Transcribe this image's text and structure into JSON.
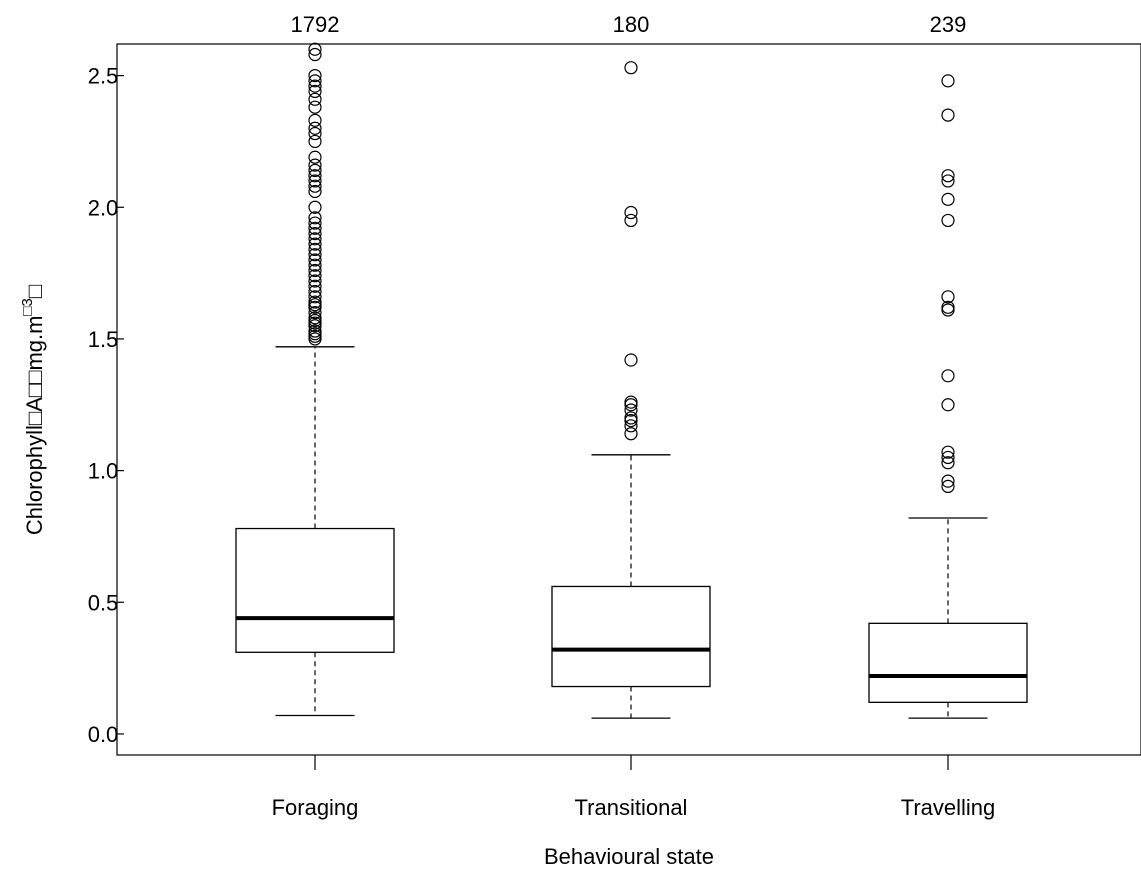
{
  "chart_data": {
    "type": "boxplot",
    "title": "",
    "xlabel": "Behavioural state",
    "ylabel": "Chlorophyll□A□□mg.m",
    "ylabel_superscript": "□3",
    "ylabel_suffix": "□",
    "ylim": [
      -0.08,
      2.62
    ],
    "yticks": [
      0.0,
      0.5,
      1.0,
      1.5,
      2.0,
      2.5
    ],
    "ytick_labels": [
      "0.0",
      "0.5",
      "1.0",
      "1.5",
      "2.0",
      "2.5"
    ],
    "grid": false,
    "categories": [
      "Foraging",
      "Transitional",
      "Travelling"
    ],
    "counts": [
      "1792",
      "180",
      "239"
    ],
    "boxes": [
      {
        "name": "Foraging",
        "n": "1792",
        "whisker_low": 0.07,
        "q1": 0.31,
        "median": 0.44,
        "q3": 0.78,
        "whisker_high": 1.47,
        "outliers": [
          1.5,
          1.51,
          1.52,
          1.53,
          1.55,
          1.56,
          1.57,
          1.58,
          1.6,
          1.62,
          1.63,
          1.64,
          1.66,
          1.68,
          1.7,
          1.72,
          1.74,
          1.76,
          1.78,
          1.8,
          1.82,
          1.84,
          1.86,
          1.88,
          1.9,
          1.92,
          1.94,
          1.96,
          2.0,
          2.06,
          2.08,
          2.1,
          2.12,
          2.14,
          2.16,
          2.19,
          2.25,
          2.28,
          2.3,
          2.33,
          2.38,
          2.41,
          2.44,
          2.46,
          2.48,
          2.5,
          2.58,
          2.6
        ]
      },
      {
        "name": "Transitional",
        "n": "180",
        "whisker_low": 0.06,
        "q1": 0.18,
        "median": 0.32,
        "q3": 0.56,
        "whisker_high": 1.06,
        "outliers": [
          1.14,
          1.17,
          1.19,
          1.2,
          1.23,
          1.25,
          1.26,
          1.42,
          1.95,
          1.98,
          2.53
        ]
      },
      {
        "name": "Travelling",
        "n": "239",
        "whisker_low": 0.06,
        "q1": 0.12,
        "median": 0.22,
        "q3": 0.42,
        "whisker_high": 0.82,
        "outliers": [
          0.94,
          0.96,
          1.03,
          1.05,
          1.07,
          1.25,
          1.36,
          1.61,
          1.62,
          1.66,
          1.95,
          2.03,
          2.1,
          2.12,
          2.35,
          2.48
        ]
      }
    ]
  }
}
